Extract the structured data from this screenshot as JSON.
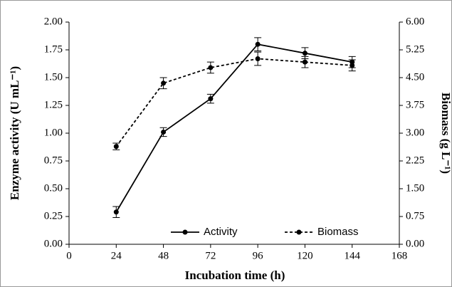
{
  "chart_data": {
    "type": "line",
    "xlabel": "Incubation time (h)",
    "ylabel": "Enzyme activity (U mL⁻¹)",
    "y2label": "Biomass (g L⁻¹)",
    "xlim": [
      0,
      168
    ],
    "xticks": [
      0,
      24,
      48,
      72,
      96,
      120,
      144,
      168
    ],
    "ylim": [
      0,
      2
    ],
    "yticks": [
      {
        "value": 0,
        "label": "0.00"
      },
      {
        "value": 0.25,
        "label": "0.25"
      },
      {
        "value": 0.5,
        "label": "0.50"
      },
      {
        "value": 0.75,
        "label": "0.75"
      },
      {
        "value": 1,
        "label": "1.00"
      },
      {
        "value": 1.25,
        "label": "1.25"
      },
      {
        "value": 1.5,
        "label": "1.50"
      },
      {
        "value": 1.75,
        "label": "1.75"
      },
      {
        "value": 2,
        "label": "2.00"
      }
    ],
    "y2lim": [
      0,
      6
    ],
    "y2ticks": [
      {
        "value": 0,
        "label": "0.00"
      },
      {
        "value": 0.75,
        "label": "0.75"
      },
      {
        "value": 1.5,
        "label": "1.50"
      },
      {
        "value": 2.25,
        "label": "2.25"
      },
      {
        "value": 3,
        "label": "3.00"
      },
      {
        "value": 3.75,
        "label": "3.75"
      },
      {
        "value": 4.5,
        "label": "4.50"
      },
      {
        "value": 5.25,
        "label": "5.25"
      },
      {
        "value": 6,
        "label": "6.00"
      }
    ],
    "x": [
      24,
      48,
      72,
      96,
      120,
      144
    ],
    "legend": "lower right",
    "series": [
      {
        "name": "Activity",
        "color": "#000000",
        "dash": "solid",
        "values": [
          0.29,
          1.01,
          1.31,
          1.8,
          1.72,
          1.64
        ],
        "errors": [
          0.05,
          0.04,
          0.04,
          0.06,
          0.05,
          0.05
        ]
      },
      {
        "name": "Biomass",
        "color": "#000000",
        "dash": "dashed",
        "axis": "y2",
        "values": [
          2.64,
          4.35,
          4.77,
          5.01,
          4.92,
          4.83
        ],
        "errors": [
          0.09,
          0.15,
          0.15,
          0.18,
          0.15,
          0.15
        ]
      }
    ]
  }
}
